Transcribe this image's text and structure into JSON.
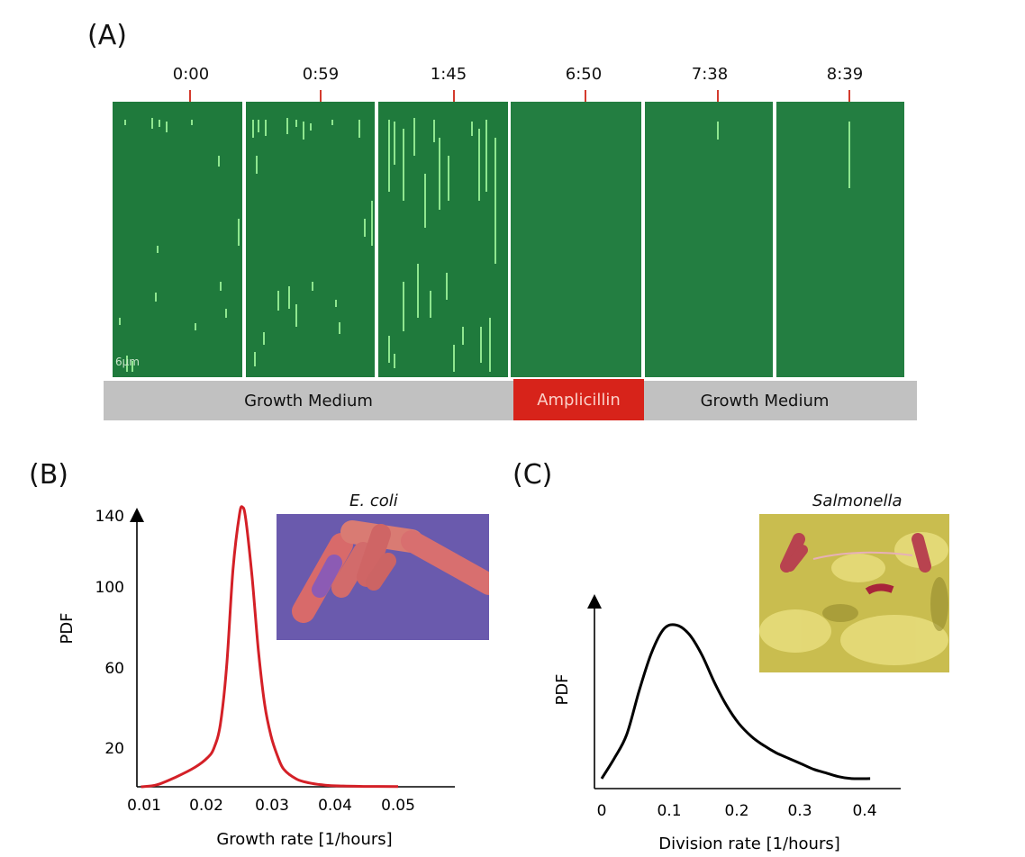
{
  "panelA": {
    "label": "(A)",
    "times": [
      "0:00",
      "0:59",
      "1:45",
      "6:50",
      "7:38",
      "8:39"
    ],
    "scale_label": "6μm",
    "conditions": [
      {
        "label": "Growth Medium",
        "color": "#c1c1c1"
      },
      {
        "label": "Amplicillin",
        "color": "#d7231a"
      },
      {
        "label": "Growth Medium",
        "color": "#c1c1c1"
      }
    ]
  },
  "panelB": {
    "label": "(B)",
    "image_caption": "E. coli"
  },
  "panelC": {
    "label": "(C)",
    "image_caption": "Salmonella"
  },
  "chart_data": [
    {
      "type": "line",
      "xlabel": "Growth rate [1/hours]",
      "ylabel": "PDF",
      "x_ticks": [
        "0.01",
        "0.02",
        "0.03",
        "0.04",
        "0.05"
      ],
      "y_ticks": [
        "20",
        "60",
        "100",
        "140"
      ],
      "xlim": [
        0.01,
        0.05
      ],
      "ylim": [
        0,
        140
      ],
      "color": "#d42027",
      "series": [
        {
          "x": [
            0.0095,
            0.012,
            0.015,
            0.018,
            0.02,
            0.021,
            0.022,
            0.023,
            0.024,
            0.025,
            0.0255,
            0.026,
            0.027,
            0.028,
            0.029,
            0.03,
            0.031,
            0.032,
            0.034,
            0.036,
            0.038,
            0.04,
            0.045,
            0.05
          ],
          "y": [
            0,
            1,
            5,
            10,
            15,
            20,
            32,
            62,
            112,
            140,
            144,
            138,
            108,
            70,
            42,
            26,
            16,
            9,
            4,
            2,
            1,
            0.5,
            0.2,
            0.1
          ]
        }
      ]
    },
    {
      "type": "line",
      "xlabel": "Division rate [1/hours]",
      "ylabel": "PDF",
      "x_ticks": [
        "0",
        "0.1",
        "0.2",
        "0.3",
        "0.4"
      ],
      "xlim": [
        0,
        0.45
      ],
      "ylim": [
        0,
        1
      ],
      "color": "#000000",
      "series": [
        {
          "x": [
            0,
            0.02,
            0.04,
            0.06,
            0.08,
            0.1,
            0.12,
            0.14,
            0.16,
            0.18,
            0.2,
            0.22,
            0.24,
            0.26,
            0.28,
            0.3,
            0.32,
            0.34,
            0.36,
            0.38,
            0.4,
            0.43
          ],
          "y": [
            0.04,
            0.15,
            0.28,
            0.52,
            0.73,
            0.86,
            0.88,
            0.83,
            0.72,
            0.57,
            0.44,
            0.34,
            0.27,
            0.22,
            0.18,
            0.15,
            0.12,
            0.09,
            0.07,
            0.05,
            0.04,
            0.04
          ]
        }
      ]
    }
  ]
}
